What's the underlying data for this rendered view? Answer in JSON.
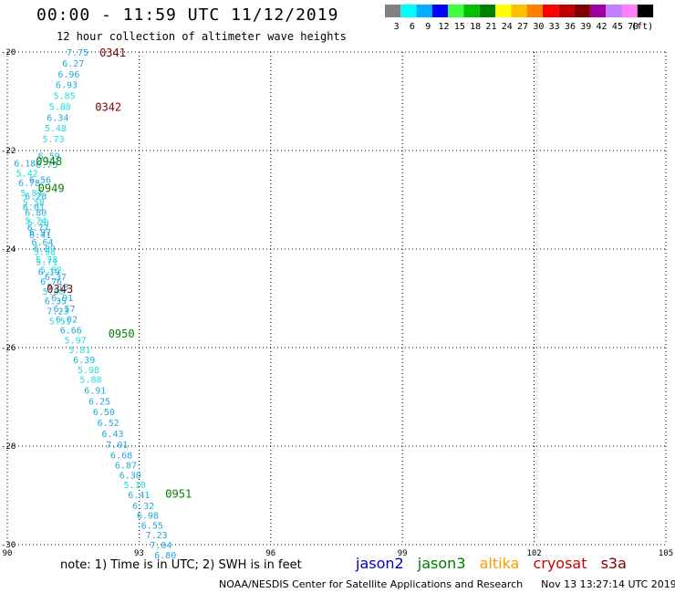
{
  "header": {
    "title": "00:00 - 11:59 UTC 11/12/2019",
    "subtitle": "12 hour collection of altimeter wave heights"
  },
  "colorbar": {
    "unit": "(ft)",
    "bins": [
      {
        "label": "3",
        "color": "#808080"
      },
      {
        "label": "6",
        "color": "#00ffff"
      },
      {
        "label": "9",
        "color": "#00b0ff"
      },
      {
        "label": "12",
        "color": "#0000ff"
      },
      {
        "label": "15",
        "color": "#40ff40"
      },
      {
        "label": "18",
        "color": "#00c000"
      },
      {
        "label": "21",
        "color": "#008000"
      },
      {
        "label": "24",
        "color": "#ffff00"
      },
      {
        "label": "27",
        "color": "#ffc000"
      },
      {
        "label": "30",
        "color": "#ff8000"
      },
      {
        "label": "33",
        "color": "#ff0000"
      },
      {
        "label": "36",
        "color": "#c00000"
      },
      {
        "label": "39",
        "color": "#800000"
      },
      {
        "label": "42",
        "color": "#a000a0"
      },
      {
        "label": "45",
        "color": "#c080ff"
      },
      {
        "label": "70",
        "color": "#ff80ff"
      },
      {
        "label": "",
        "color": "#000000"
      }
    ]
  },
  "chart_data": {
    "type": "scatter",
    "xlim": [
      90,
      105
    ],
    "ylim": [
      -30,
      -20
    ],
    "x_ticks": [
      "90",
      "93",
      "96",
      "99",
      "102",
      "105"
    ],
    "y_ticks": [
      "-20",
      "-22",
      "-24",
      "-26",
      "-28",
      "-30"
    ],
    "points": [
      {
        "lon": 91.6,
        "lat": -20.0,
        "value": "7.75"
      },
      {
        "lon": 91.5,
        "lat": -20.22,
        "value": "6.27"
      },
      {
        "lon": 91.4,
        "lat": -20.44,
        "value": "6.96"
      },
      {
        "lon": 91.35,
        "lat": -20.66,
        "value": "6.93"
      },
      {
        "lon": 91.3,
        "lat": -20.88,
        "value": "5.85"
      },
      {
        "lon": 91.2,
        "lat": -21.1,
        "value": "5.88"
      },
      {
        "lon": 91.15,
        "lat": -21.32,
        "value": "6.34"
      },
      {
        "lon": 91.1,
        "lat": -21.54,
        "value": "5.48"
      },
      {
        "lon": 91.05,
        "lat": -21.76,
        "value": "5.73"
      },
      {
        "lon": 90.95,
        "lat": -22.1,
        "value": "6.59"
      },
      {
        "lon": 90.9,
        "lat": -22.28,
        "value": "6.75"
      },
      {
        "lon": 90.75,
        "lat": -22.58,
        "value": "6.56"
      },
      {
        "lon": 90.65,
        "lat": -22.92,
        "value": "6.28"
      },
      {
        "lon": 90.6,
        "lat": -23.14,
        "value": "6.01"
      },
      {
        "lon": 90.65,
        "lat": -23.42,
        "value": "5.74"
      },
      {
        "lon": 90.7,
        "lat": -23.56,
        "value": "6.77"
      },
      {
        "lon": 90.75,
        "lat": -23.7,
        "value": "6.41"
      },
      {
        "lon": 90.85,
        "lat": -23.98,
        "value": "6.09"
      },
      {
        "lon": 90.9,
        "lat": -24.2,
        "value": "5.78"
      },
      {
        "lon": 91.0,
        "lat": -24.42,
        "value": "5.82"
      },
      {
        "lon": 91.1,
        "lat": -24.56,
        "value": "6.37"
      },
      {
        "lon": 91.15,
        "lat": -24.76,
        "value": "6.13"
      },
      {
        "lon": 91.25,
        "lat": -24.98,
        "value": "6.91"
      },
      {
        "lon": 91.3,
        "lat": -25.2,
        "value": "6.57"
      },
      {
        "lon": 91.35,
        "lat": -25.42,
        "value": "6.02"
      },
      {
        "lon": 91.45,
        "lat": -25.64,
        "value": "6.66"
      },
      {
        "lon": 91.55,
        "lat": -25.84,
        "value": "5.97"
      },
      {
        "lon": 91.65,
        "lat": -26.04,
        "value": "5.81"
      },
      {
        "lon": 91.75,
        "lat": -26.24,
        "value": "6.39"
      },
      {
        "lon": 91.85,
        "lat": -26.44,
        "value": "5.98"
      },
      {
        "lon": 91.9,
        "lat": -26.64,
        "value": "5.88"
      },
      {
        "lon": 92.0,
        "lat": -26.86,
        "value": "6.91"
      },
      {
        "lon": 92.1,
        "lat": -27.08,
        "value": "6.25"
      },
      {
        "lon": 92.2,
        "lat": -27.3,
        "value": "6.50"
      },
      {
        "lon": 92.3,
        "lat": -27.52,
        "value": "6.52"
      },
      {
        "lon": 92.4,
        "lat": -27.74,
        "value": "6.43"
      },
      {
        "lon": 92.5,
        "lat": -27.96,
        "value": "7.01"
      },
      {
        "lon": 92.6,
        "lat": -28.18,
        "value": "6.68"
      },
      {
        "lon": 92.7,
        "lat": -28.38,
        "value": "6.87"
      },
      {
        "lon": 92.8,
        "lat": -28.58,
        "value": "6.30"
      },
      {
        "lon": 92.9,
        "lat": -28.78,
        "value": "5.10"
      },
      {
        "lon": 93.0,
        "lat": -28.98,
        "value": "6.41"
      },
      {
        "lon": 93.1,
        "lat": -29.2,
        "value": "6.32"
      },
      {
        "lon": 93.2,
        "lat": -29.4,
        "value": "6.98"
      },
      {
        "lon": 93.3,
        "lat": -29.6,
        "value": "6.55"
      },
      {
        "lon": 93.4,
        "lat": -29.8,
        "value": "7.23"
      },
      {
        "lon": 93.5,
        "lat": -30.0,
        "value": "7.04"
      },
      {
        "lon": 93.6,
        "lat": -30.2,
        "value": "6.80"
      },
      {
        "lon": 90.4,
        "lat": -22.25,
        "value": "6.18"
      },
      {
        "lon": 90.45,
        "lat": -22.45,
        "value": "5.42"
      },
      {
        "lon": 90.5,
        "lat": -22.65,
        "value": "6.78"
      },
      {
        "lon": 90.55,
        "lat": -22.85,
        "value": "5.83"
      },
      {
        "lon": 90.6,
        "lat": -23.05,
        "value": "5.58"
      },
      {
        "lon": 90.65,
        "lat": -23.25,
        "value": "6.80"
      },
      {
        "lon": 90.7,
        "lat": -23.45,
        "value": "5.70"
      },
      {
        "lon": 90.75,
        "lat": -23.65,
        "value": "6.97"
      },
      {
        "lon": 90.8,
        "lat": -23.85,
        "value": "6.64"
      },
      {
        "lon": 90.85,
        "lat": -24.05,
        "value": "5.98"
      },
      {
        "lon": 90.9,
        "lat": -24.25,
        "value": "5.71"
      },
      {
        "lon": 90.95,
        "lat": -24.45,
        "value": "6.19"
      },
      {
        "lon": 91.0,
        "lat": -24.65,
        "value": "6.76"
      },
      {
        "lon": 91.05,
        "lat": -24.85,
        "value": "5.88"
      },
      {
        "lon": 91.1,
        "lat": -25.05,
        "value": "6.35"
      },
      {
        "lon": 91.15,
        "lat": -25.25,
        "value": "7.23"
      },
      {
        "lon": 91.2,
        "lat": -25.45,
        "value": "5.51"
      }
    ],
    "pass_labels": [
      {
        "lon": 92.4,
        "lat": -20.0,
        "text": "0341",
        "mission": "cryosat"
      },
      {
        "lon": 92.3,
        "lat": -21.1,
        "text": "0342",
        "mission": "cryosat"
      },
      {
        "lon": 91.2,
        "lat": -24.8,
        "text": "0343",
        "mission": "cryosat"
      },
      {
        "lon": 90.95,
        "lat": -22.2,
        "text": "0948",
        "mission": "jason3"
      },
      {
        "lon": 91.0,
        "lat": -22.75,
        "text": "0949",
        "mission": "jason3"
      },
      {
        "lon": 92.6,
        "lat": -25.7,
        "text": "0950",
        "mission": "jason3"
      },
      {
        "lon": 93.9,
        "lat": -28.95,
        "text": "0951",
        "mission": "jason3"
      }
    ]
  },
  "footer": {
    "note": "note: 1) Time is in UTC; 2) SWH is in feet",
    "legend": [
      {
        "name": "jason2",
        "color": "#0000cc"
      },
      {
        "name": "jason3",
        "color": "#008000"
      },
      {
        "name": "altika",
        "color": "#ff9900"
      },
      {
        "name": "cryosat",
        "color": "#cc0000"
      },
      {
        "name": "s3a",
        "color": "#800000"
      }
    ],
    "credit": "NOAA/NESDIS Center for Satellite Applications and Research",
    "timestamp": "Nov 13 13:27:14 UTC 2019"
  }
}
